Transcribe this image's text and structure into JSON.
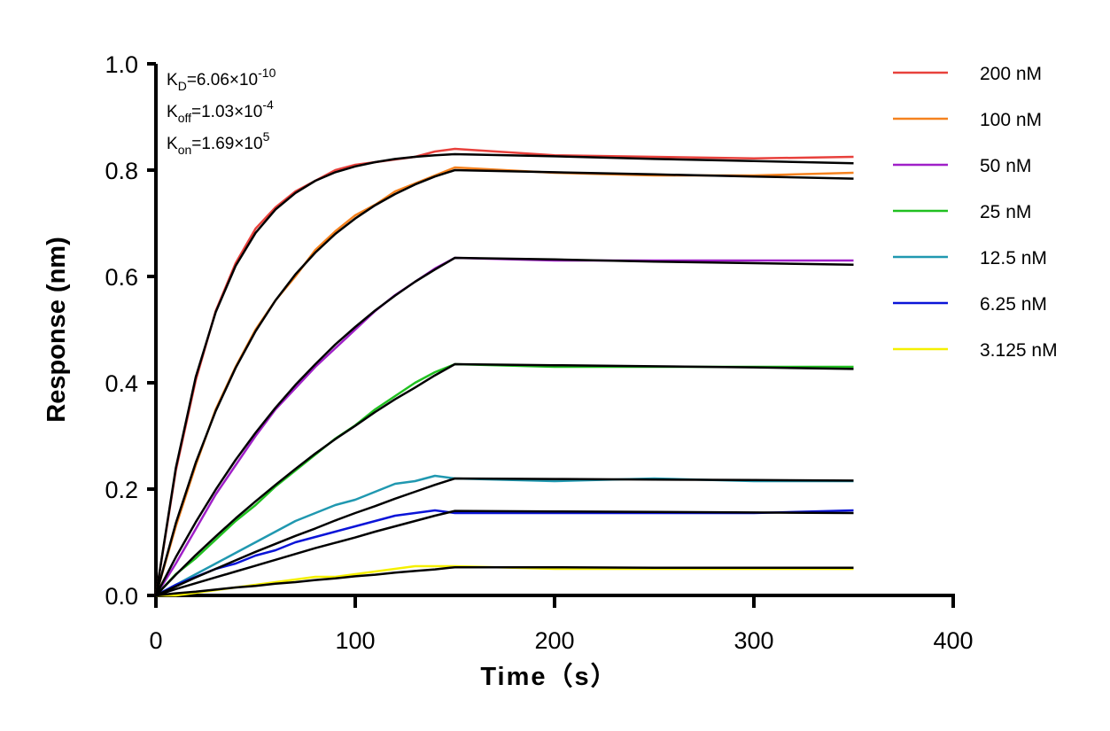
{
  "chart_data": {
    "type": "line",
    "xlabel": "Time（s）",
    "ylabel": "Response (nm)",
    "annotations": [
      {
        "symbol": "K",
        "subscript": "D",
        "text": "=6.06×10",
        "superscript": "-10"
      },
      {
        "symbol": "K",
        "subscript": "off",
        "text": "=1.03×10",
        "superscript": "-4"
      },
      {
        "symbol": "K",
        "subscript": "on",
        "text": "=1.69×10",
        "superscript": "5"
      }
    ],
    "x": [
      0,
      10,
      20,
      30,
      40,
      50,
      60,
      70,
      80,
      90,
      100,
      110,
      120,
      130,
      140,
      150,
      200,
      250,
      300,
      350
    ],
    "series": [
      {
        "name": "200 nM",
        "color": "#e8413c",
        "values": [
          0,
          0.235,
          0.405,
          0.535,
          0.625,
          0.69,
          0.73,
          0.76,
          0.78,
          0.8,
          0.81,
          0.815,
          0.82,
          0.825,
          0.835,
          0.84,
          0.828,
          0.825,
          0.822,
          0.825
        ]
      },
      {
        "name": "100 nM",
        "color": "#f5821f",
        "values": [
          0,
          0.13,
          0.245,
          0.35,
          0.43,
          0.5,
          0.555,
          0.6,
          0.65,
          0.685,
          0.715,
          0.735,
          0.76,
          0.775,
          0.79,
          0.805,
          0.795,
          0.79,
          0.79,
          0.795
        ]
      },
      {
        "name": "50 nM",
        "color": "#a020c8",
        "values": [
          0,
          0.06,
          0.125,
          0.19,
          0.245,
          0.3,
          0.35,
          0.39,
          0.43,
          0.465,
          0.5,
          0.535,
          0.565,
          0.59,
          0.615,
          0.635,
          0.63,
          0.63,
          0.63,
          0.63
        ]
      },
      {
        "name": "25 nM",
        "color": "#20c020",
        "values": [
          0,
          0.04,
          0.07,
          0.105,
          0.14,
          0.17,
          0.205,
          0.235,
          0.265,
          0.295,
          0.32,
          0.35,
          0.375,
          0.4,
          0.42,
          0.435,
          0.43,
          0.43,
          0.43,
          0.43
        ]
      },
      {
        "name": "12.5 nM",
        "color": "#2098b0",
        "values": [
          0,
          0.02,
          0.04,
          0.06,
          0.08,
          0.1,
          0.12,
          0.14,
          0.155,
          0.17,
          0.18,
          0.195,
          0.21,
          0.215,
          0.225,
          0.22,
          0.215,
          0.22,
          0.215,
          0.215
        ]
      },
      {
        "name": "6.25 nM",
        "color": "#0a14d8",
        "values": [
          0,
          0.02,
          0.035,
          0.05,
          0.06,
          0.075,
          0.085,
          0.1,
          0.11,
          0.12,
          0.13,
          0.14,
          0.15,
          0.155,
          0.16,
          0.155,
          0.155,
          0.155,
          0.155,
          0.16
        ]
      },
      {
        "name": "3.125 nM",
        "color": "#f5f000",
        "values": [
          0,
          0,
          0.005,
          0.01,
          0.015,
          0.02,
          0.025,
          0.03,
          0.035,
          0.035,
          0.04,
          0.045,
          0.05,
          0.055,
          0.055,
          0.055,
          0.05,
          0.05,
          0.05,
          0.05
        ]
      }
    ],
    "fits": [
      {
        "color": "#000000",
        "values": [
          0,
          0.24,
          0.411,
          0.533,
          0.62,
          0.682,
          0.726,
          0.757,
          0.78,
          0.796,
          0.807,
          0.815,
          0.821,
          0.825,
          0.828,
          0.83,
          0.826,
          0.821,
          0.817,
          0.813
        ]
      },
      {
        "color": "#000000",
        "values": [
          0,
          0.136,
          0.25,
          0.347,
          0.428,
          0.497,
          0.555,
          0.604,
          0.645,
          0.68,
          0.709,
          0.734,
          0.755,
          0.773,
          0.788,
          0.8,
          0.796,
          0.792,
          0.788,
          0.784
        ]
      },
      {
        "color": "#000000",
        "values": [
          0,
          0.072,
          0.138,
          0.199,
          0.255,
          0.306,
          0.353,
          0.396,
          0.435,
          0.472,
          0.505,
          0.536,
          0.564,
          0.59,
          0.613,
          0.635,
          0.632,
          0.628,
          0.625,
          0.622
        ]
      },
      {
        "color": "#000000",
        "values": [
          0,
          0.039,
          0.076,
          0.111,
          0.145,
          0.177,
          0.208,
          0.238,
          0.267,
          0.294,
          0.319,
          0.345,
          0.369,
          0.391,
          0.414,
          0.435,
          0.433,
          0.431,
          0.429,
          0.426
        ]
      },
      {
        "color": "#000000",
        "values": [
          0,
          0.017,
          0.034,
          0.05,
          0.066,
          0.082,
          0.097,
          0.112,
          0.126,
          0.141,
          0.155,
          0.168,
          0.182,
          0.195,
          0.208,
          0.22,
          0.219,
          0.218,
          0.217,
          0.216
        ]
      },
      {
        "color": "#000000",
        "values": [
          0,
          0.012,
          0.023,
          0.034,
          0.045,
          0.056,
          0.067,
          0.078,
          0.089,
          0.099,
          0.109,
          0.12,
          0.13,
          0.14,
          0.15,
          0.159,
          0.158,
          0.157,
          0.156,
          0.155
        ]
      },
      {
        "color": "#000000",
        "values": [
          0,
          0.004,
          0.007,
          0.011,
          0.015,
          0.018,
          0.022,
          0.025,
          0.029,
          0.032,
          0.036,
          0.039,
          0.043,
          0.046,
          0.049,
          0.053,
          0.053,
          0.052,
          0.052,
          0.052
        ]
      }
    ],
    "xlim": [
      0,
      400
    ],
    "xticks": [
      0,
      100,
      200,
      300,
      400
    ],
    "ylim": [
      0,
      1.0
    ],
    "yticks": [
      {
        "value": 0,
        "label": "0.0"
      },
      {
        "value": 0.2,
        "label": "0.2"
      },
      {
        "value": 0.4,
        "label": "0.4"
      },
      {
        "value": 0.6,
        "label": "0.6"
      },
      {
        "value": 0.8,
        "label": "0.8"
      },
      {
        "value": 1.0,
        "label": "1.0"
      }
    ],
    "grid": false,
    "legend": "upper right"
  }
}
